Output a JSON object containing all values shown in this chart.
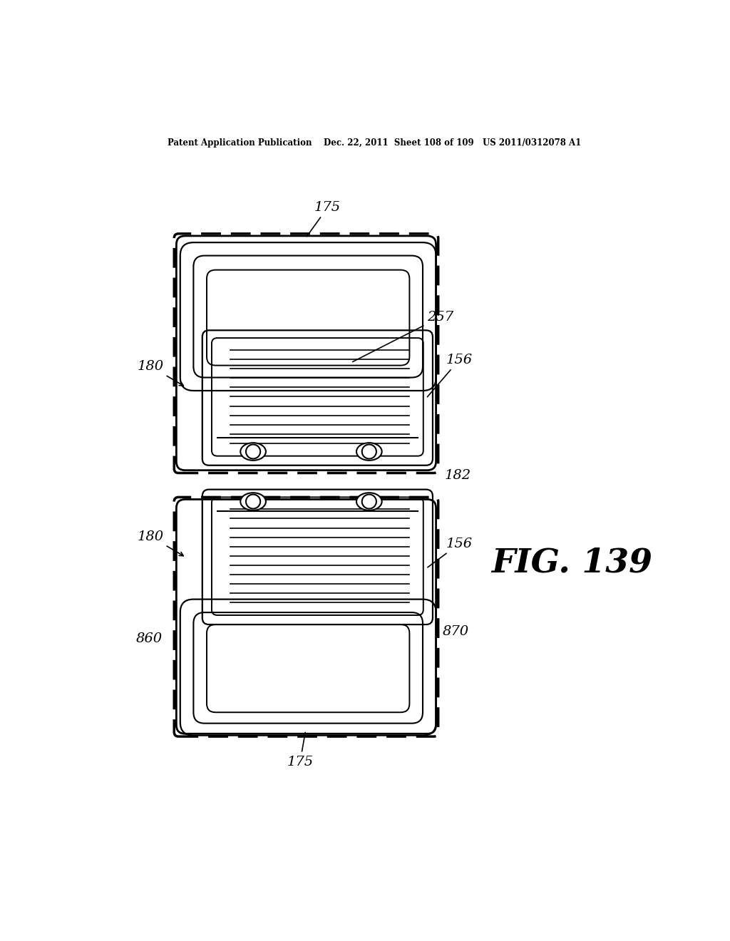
{
  "bg_color": "#ffffff",
  "line_color": "#000000",
  "dashed_color": "#000000",
  "header_text": "Patent Application Publication    Dec. 22, 2011  Sheet 108 of 109   US 2011/0312078 A1",
  "fig_label": "FIG. 139",
  "labels": {
    "175_top": "175",
    "175_bot": "175",
    "180_top": "180",
    "180_bot": "180",
    "156_top": "156",
    "156_bot": "156",
    "257": "257",
    "182": "182",
    "860": "860",
    "870": "870"
  }
}
